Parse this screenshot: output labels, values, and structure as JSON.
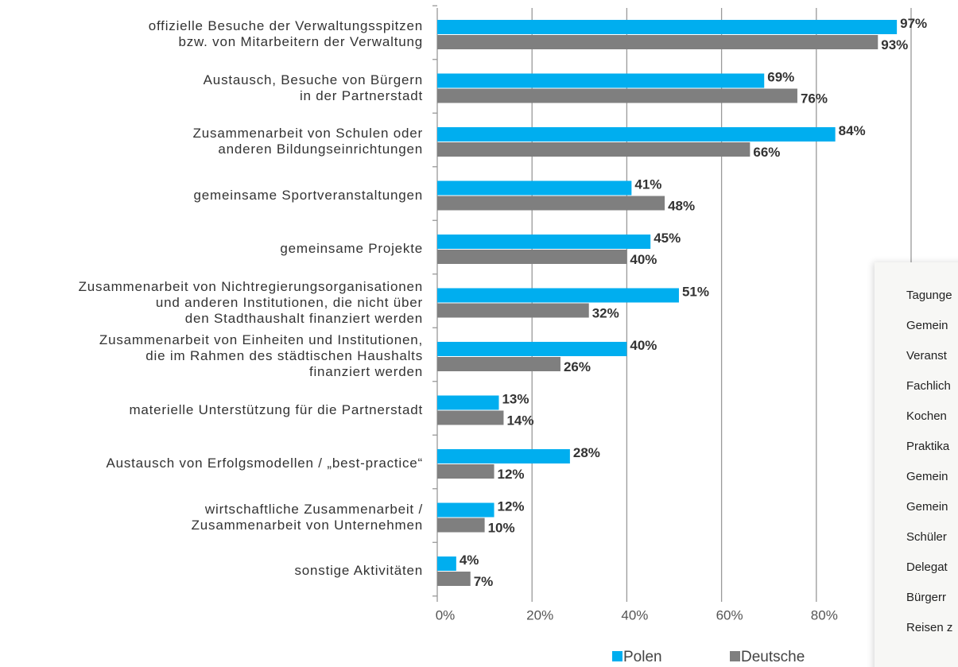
{
  "chart_data": {
    "type": "barh",
    "categories": [
      "offizielle Besuche der Verwaltungsspitzen\nbzw. von Mitarbeitern der Verwaltung",
      "Austausch, Besuche von Bürgern\nin der Partnerstadt",
      "Zusammenarbeit von Schulen oder\nanderen Bildungseinrichtungen",
      "gemeinsame Sportveranstaltungen",
      "gemeinsame Projekte",
      "Zusammenarbeit von Nichtregierungsorganisationen\nund anderen Institutionen, die nicht über\nden Stadthaushalt finanziert werden",
      "Zusammenarbeit von Einheiten und Institutionen,\ndie im Rahmen des städtischen Haushalts\nfinanziert werden",
      "materielle Unterstützung für die Partnerstadt",
      "Austausch von Erfolgsmodellen / „best-practice“",
      "wirtschaftliche Zusammenarbeit /\nZusammenarbeit von Unternehmen",
      "sonstige Aktivitäten"
    ],
    "series": [
      {
        "name": "Polen",
        "color": "#00aeef",
        "values": [
          97,
          69,
          84,
          41,
          45,
          51,
          40,
          13,
          28,
          12,
          4
        ],
        "value_labels": [
          "97%",
          "69%",
          "84%",
          "41%",
          "45%",
          "51%",
          "40%",
          "13%",
          "28%",
          "12%",
          "4%"
        ]
      },
      {
        "name": "Deutsche",
        "color": "#7f7f7f",
        "values": [
          93,
          76,
          66,
          48,
          40,
          32,
          26,
          14,
          12,
          10,
          7
        ],
        "value_labels": [
          "93%",
          "76%",
          "66%",
          "48%",
          "40%",
          "32%",
          "26%",
          "14%",
          "12%",
          "10%",
          "7%"
        ]
      }
    ],
    "xlim": [
      0,
      100
    ],
    "xticks": [
      {
        "value": 0,
        "label": "0%"
      },
      {
        "value": 20,
        "label": "20%"
      },
      {
        "value": 40,
        "label": "40%"
      },
      {
        "value": 60,
        "label": "60%"
      },
      {
        "value": 80,
        "label": "80%"
      }
    ],
    "grid": true,
    "legend": "bottom"
  },
  "side_panel": {
    "items": [
      "Tagunge",
      "Gemein",
      "Veranst",
      "Fachlich",
      "Kochen",
      "Praktika",
      "Gemein",
      "Gemein",
      "Schüler",
      "Delegat",
      "Bürgerr",
      "Reisen z"
    ]
  }
}
